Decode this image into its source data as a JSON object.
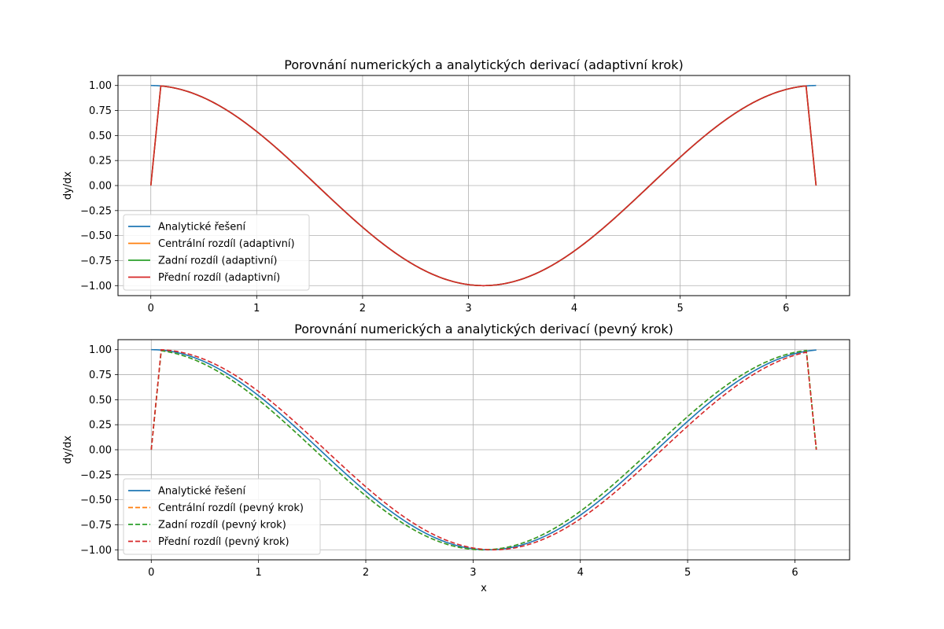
{
  "chart_data": [
    {
      "type": "line",
      "title": "Porovnání numerických a analytických derivací (adaptivní krok)",
      "xlabel": "",
      "ylabel": "dy/dx",
      "xlim": [
        -0.31,
        6.6
      ],
      "ylim": [
        -1.1,
        1.1
      ],
      "xticks": [
        0,
        1,
        2,
        3,
        4,
        5,
        6
      ],
      "yticks": [
        -1.0,
        -0.75,
        -0.5,
        -0.25,
        0.0,
        0.25,
        0.5,
        0.75,
        1.0
      ],
      "grid": true,
      "legend_position": "lower-left",
      "series": [
        {
          "name": "Analytické řešení",
          "color": "#1f77b4",
          "style": "solid",
          "kind": "cos",
          "x_range": [
            0,
            6.2832
          ],
          "endpoints_zero": false,
          "shift": 0
        },
        {
          "name": "Centrální rozdíl (adaptivní)",
          "color": "#ff7f0e",
          "style": "solid",
          "kind": "cos",
          "x_range": [
            0,
            6.2832
          ],
          "endpoints_zero": true,
          "shift": 0
        },
        {
          "name": "Zadní rozdíl (adaptivní)",
          "color": "#2ca02c",
          "style": "solid",
          "kind": "cos",
          "x_range": [
            0,
            6.2832
          ],
          "endpoints_zero": true,
          "shift": 0
        },
        {
          "name": "Přední rozdíl (adaptivní)",
          "color": "#d62728",
          "style": "solid",
          "kind": "cos",
          "x_range": [
            0,
            6.2832
          ],
          "endpoints_zero": true,
          "shift": 0
        }
      ]
    },
    {
      "type": "line",
      "title": "Porovnání numerických a analytických derivací (pevný krok)",
      "xlabel": "x",
      "ylabel": "dy/dx",
      "xlim": [
        -0.31,
        6.51
      ],
      "ylim": [
        -1.1,
        1.1
      ],
      "xticks": [
        0,
        1,
        2,
        3,
        4,
        5,
        6
      ],
      "yticks": [
        -1.0,
        -0.75,
        -0.5,
        -0.25,
        0.0,
        0.25,
        0.5,
        0.75,
        1.0
      ],
      "grid": true,
      "legend_position": "lower-left",
      "series": [
        {
          "name": "Analytické řešení",
          "color": "#1f77b4",
          "style": "solid",
          "kind": "cos",
          "x_range": [
            0,
            6.2
          ],
          "endpoints_zero": false,
          "shift": 0
        },
        {
          "name": "Centrální rozdíl (pevný krok)",
          "color": "#ff7f0e",
          "style": "dashed",
          "kind": "cos",
          "x_range": [
            0,
            6.2
          ],
          "endpoints_zero": true,
          "shift": 0.05
        },
        {
          "name": "Zadní rozdíl (pevný krok)",
          "color": "#2ca02c",
          "style": "dashed",
          "kind": "cos",
          "x_range": [
            0,
            6.2
          ],
          "endpoints_zero": true,
          "shift": 0.05
        },
        {
          "name": "Přední rozdíl (pevný krok)",
          "color": "#d62728",
          "style": "dashed",
          "kind": "cos",
          "x_range": [
            0,
            6.2
          ],
          "endpoints_zero": true,
          "shift": -0.05
        }
      ]
    }
  ]
}
